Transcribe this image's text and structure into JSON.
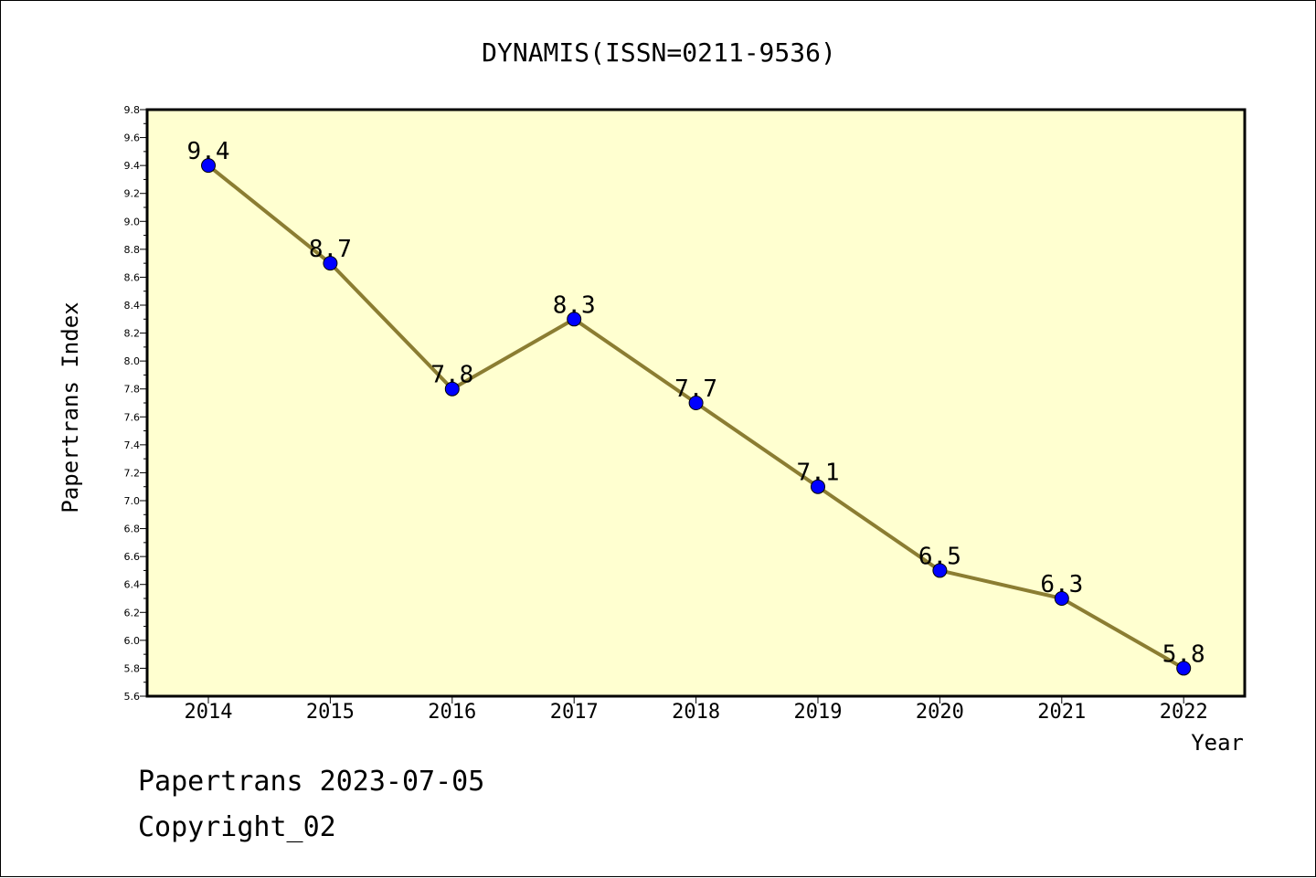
{
  "chart_data": {
    "type": "line",
    "title": "DYNAMIS(ISSN=0211-9536)",
    "xlabel": "Year",
    "ylabel": "Papertrans Index",
    "categories": [
      "2014",
      "2015",
      "2016",
      "2017",
      "2018",
      "2019",
      "2020",
      "2021",
      "2022"
    ],
    "series": [
      {
        "values": [
          9.4,
          8.7,
          7.8,
          8.3,
          7.7,
          7.1,
          6.5,
          6.3,
          5.8
        ]
      }
    ],
    "data_labels": [
      "9.4",
      "8.7",
      "7.8",
      "8.3",
      "7.7",
      "7.1",
      "6.5",
      "6.3",
      "5.8"
    ],
    "ylim": [
      5.6,
      9.8
    ],
    "yticks": [
      "5.6",
      "5.8",
      "6.0",
      "6.2",
      "6.4",
      "6.6",
      "6.8",
      "7.0",
      "7.2",
      "7.4",
      "7.6",
      "7.8",
      "8.0",
      "8.2",
      "8.4",
      "8.6",
      "8.8",
      "9.0",
      "9.2",
      "9.4",
      "9.6",
      "9.8"
    ],
    "grid": false,
    "colors": {
      "plot_background": "#ffffd0",
      "line": "#8b7d32",
      "marker": "#0000ff"
    }
  },
  "footer": {
    "line1": "Papertrans 2023-07-05",
    "line2": "Copyright_02"
  }
}
